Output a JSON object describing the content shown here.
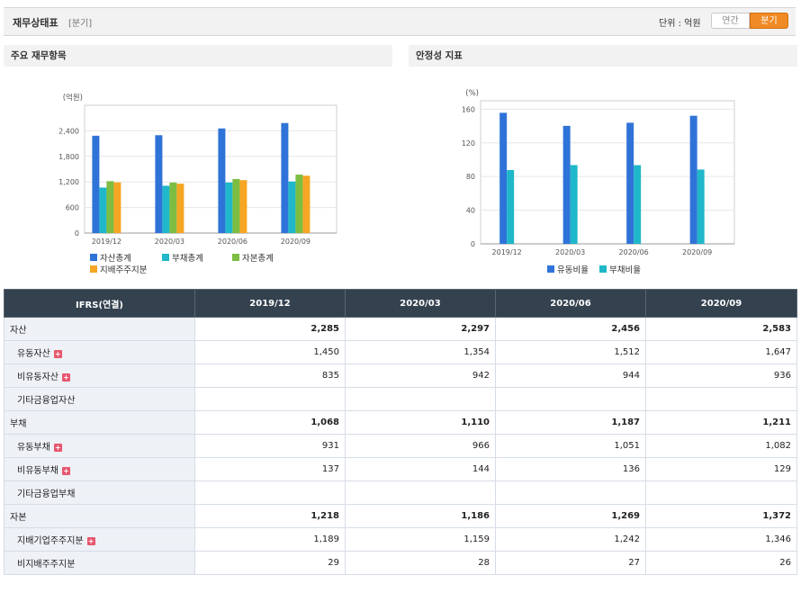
{
  "header": {
    "title": "재무상태표",
    "subtitle": "[분기]",
    "unit": "단위 : 억원",
    "toggle_year": "연간",
    "toggle_quarter": "분기"
  },
  "panels": {
    "left_title": "주요 재무항목",
    "right_title": "안정성 지표"
  },
  "chart_data": [
    {
      "type": "bar",
      "title": "주요 재무항목",
      "ylabel": "(억원)",
      "categories": [
        "2019/12",
        "2020/03",
        "2020/06",
        "2020/09"
      ],
      "ylim": [
        0,
        3000
      ],
      "yticks": [
        0,
        600,
        1200,
        1800,
        2400
      ],
      "ytick_labels": [
        "0",
        "600",
        "1,200",
        "1,800",
        "2,400"
      ],
      "grid": true,
      "legend_position": "bottom",
      "series": [
        {
          "name": "자산총계",
          "color": "#2f73d8",
          "values": [
            2285,
            2297,
            2456,
            2583
          ]
        },
        {
          "name": "부채총계",
          "color": "#1fb7c9",
          "values": [
            1068,
            1110,
            1187,
            1211
          ]
        },
        {
          "name": "자본총계",
          "color": "#7dbd42",
          "values": [
            1218,
            1186,
            1269,
            1372
          ]
        },
        {
          "name": "지배주주지분",
          "color": "#f5a623",
          "values": [
            1189,
            1159,
            1242,
            1346
          ]
        }
      ]
    },
    {
      "type": "bar",
      "title": "안정성 지표",
      "ylabel": "(%)",
      "categories": [
        "2019/12",
        "2020/03",
        "2020/06",
        "2020/09"
      ],
      "ylim": [
        0,
        170
      ],
      "yticks": [
        0,
        40,
        80,
        120,
        160
      ],
      "ytick_labels": [
        "0",
        "40",
        "80",
        "120",
        "160"
      ],
      "grid": true,
      "legend_position": "bottom",
      "series": [
        {
          "name": "유동비율",
          "color": "#2f73d8",
          "values": [
            155.7,
            140.2,
            143.9,
            152.2
          ]
        },
        {
          "name": "부채비율",
          "color": "#1fb7c9",
          "values": [
            87.7,
            93.6,
            93.5,
            88.3
          ]
        }
      ]
    }
  ],
  "table": {
    "corner": "IFRS(연결)",
    "columns": [
      "2019/12",
      "2020/03",
      "2020/06",
      "2020/09"
    ],
    "rows": [
      {
        "label": "자산",
        "main": true,
        "plus": false,
        "values": [
          "2,285",
          "2,297",
          "2,456",
          "2,583"
        ]
      },
      {
        "label": "유동자산",
        "main": false,
        "plus": true,
        "values": [
          "1,450",
          "1,354",
          "1,512",
          "1,647"
        ]
      },
      {
        "label": "비유동자산",
        "main": false,
        "plus": true,
        "values": [
          "835",
          "942",
          "944",
          "936"
        ]
      },
      {
        "label": "기타금융업자산",
        "main": false,
        "plus": false,
        "values": [
          "",
          "",
          "",
          ""
        ]
      },
      {
        "label": "부채",
        "main": true,
        "plus": false,
        "values": [
          "1,068",
          "1,110",
          "1,187",
          "1,211"
        ]
      },
      {
        "label": "유동부채",
        "main": false,
        "plus": true,
        "values": [
          "931",
          "966",
          "1,051",
          "1,082"
        ]
      },
      {
        "label": "비유동부채",
        "main": false,
        "plus": true,
        "values": [
          "137",
          "144",
          "136",
          "129"
        ]
      },
      {
        "label": "기타금융업부채",
        "main": false,
        "plus": false,
        "values": [
          "",
          "",
          "",
          ""
        ]
      },
      {
        "label": "자본",
        "main": true,
        "plus": false,
        "values": [
          "1,218",
          "1,186",
          "1,269",
          "1,372"
        ]
      },
      {
        "label": "지배기업주주지분",
        "main": false,
        "plus": true,
        "values": [
          "1,189",
          "1,159",
          "1,242",
          "1,346"
        ]
      },
      {
        "label": "비지배주주지분",
        "main": false,
        "plus": false,
        "values": [
          "29",
          "28",
          "27",
          "26"
        ]
      }
    ],
    "plus_glyph": "+"
  }
}
